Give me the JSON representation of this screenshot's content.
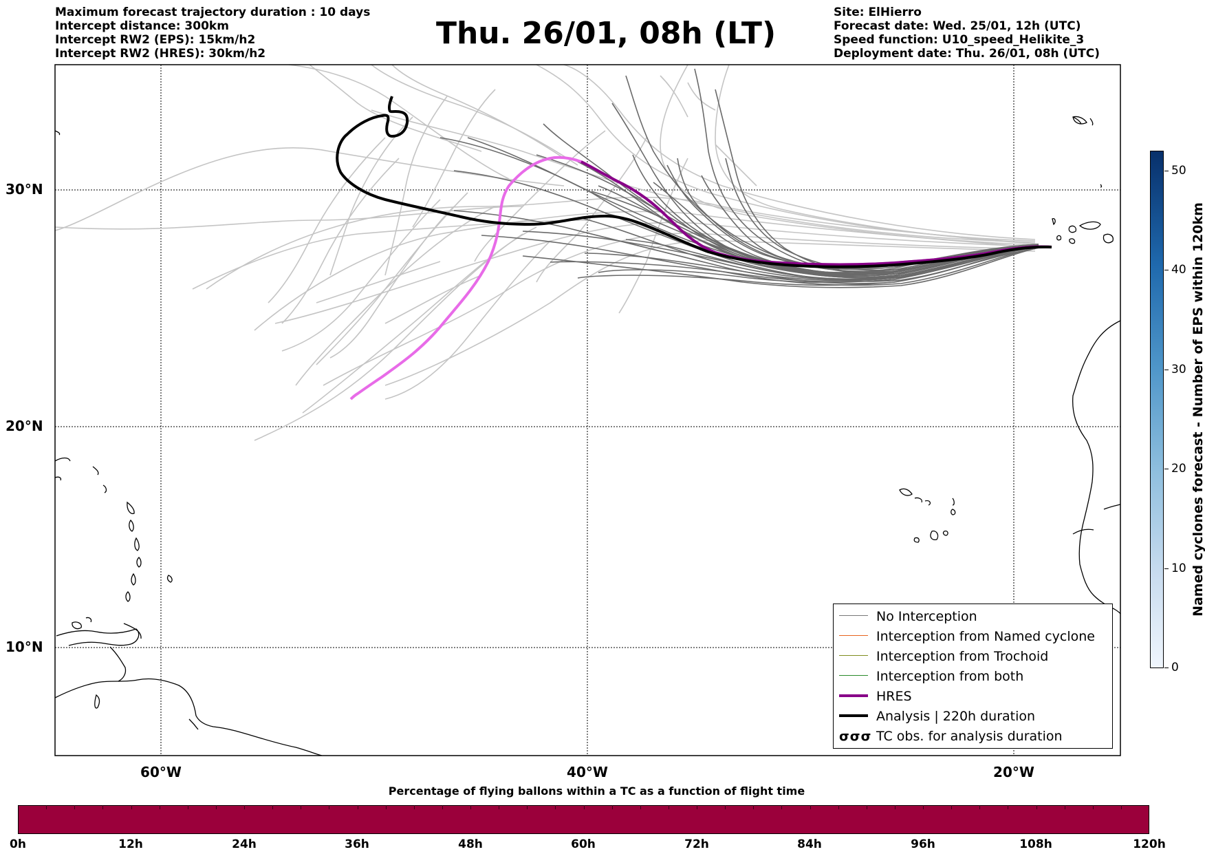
{
  "header_left": [
    "Maximum forecast trajectory duration : 10 days",
    "Intercept distance: 300km",
    "Intercept RW2 (EPS):  15km/h2",
    "Intercept RW2 (HRES): 30km/h2"
  ],
  "title": "Thu. 26/01, 08h (LT)",
  "header_right": [
    "Site: ElHierro",
    "Forecast date: Wed. 25/01, 12h (UTC)",
    "Speed function: U10_speed_Helikite_3",
    "Deployment date: Thu. 26/01, 08h (UTC)"
  ],
  "map": {
    "lat_labels": [
      "30°N",
      "20°N",
      "10°N"
    ],
    "lon_labels": [
      "60°W",
      "40°W",
      "20°W"
    ],
    "gridlines": "dotted"
  },
  "legend": {
    "items": [
      {
        "label": "No Interception",
        "color": "#777777",
        "style": "thin"
      },
      {
        "label": "Interception from Named cyclone",
        "color": "#e8641e",
        "style": "thin"
      },
      {
        "label": "Interception from Trochoid",
        "color": "#7f8c1e",
        "style": "thin"
      },
      {
        "label": "Interception from both",
        "color": "#2a8a2a",
        "style": "thin"
      },
      {
        "label": "HRES",
        "color": "#880088",
        "style": "thick"
      },
      {
        "label": "Analysis | 220h duration",
        "color": "#000000",
        "style": "thick"
      },
      {
        "label": "TC obs. for analysis duration",
        "color": "#000000",
        "style": "symbol",
        "symbol": "σσσ"
      }
    ]
  },
  "colorbar_vertical": {
    "label": "Named cyclones forecast - Number of EPS within 120km",
    "ticks": [
      "0",
      "10",
      "20",
      "30",
      "40",
      "50"
    ],
    "range": [
      0,
      52
    ]
  },
  "colorbar_horizontal": {
    "title": "Percentage of flying ballons within a TC as a function of flight time",
    "ticks": [
      "0h",
      "12h",
      "24h",
      "36h",
      "48h",
      "60h",
      "72h",
      "84h",
      "96h",
      "108h",
      "120h"
    ],
    "color": "#9b003b"
  }
}
